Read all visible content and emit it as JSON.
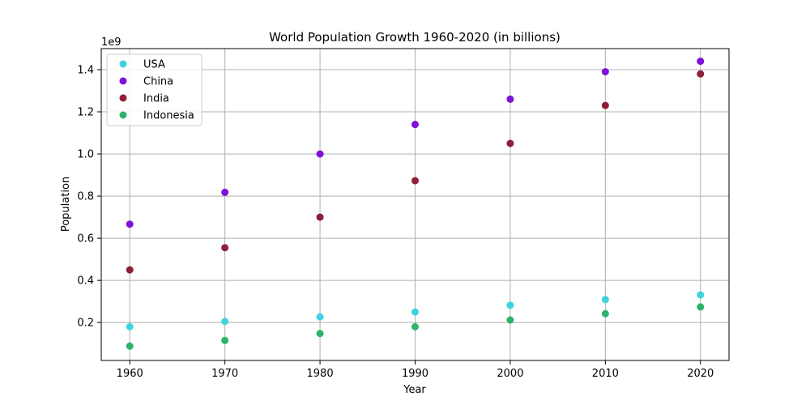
{
  "chart_data": {
    "type": "scatter",
    "title": "World Population Growth 1960-2020 (in billions)",
    "xlabel": "Year",
    "ylabel": "Population",
    "offset_label": "1e9",
    "x": [
      1960,
      1970,
      1980,
      1990,
      2000,
      2010,
      2020
    ],
    "xticks": [
      "1960",
      "1970",
      "1980",
      "1990",
      "2000",
      "2010",
      "2020"
    ],
    "yticks": [
      "0.2",
      "0.4",
      "0.6",
      "0.8",
      "1.0",
      "1.2",
      "1.4"
    ],
    "ytick_values": [
      0.2,
      0.4,
      0.6,
      0.8,
      1.0,
      1.2,
      1.4
    ],
    "xlim": [
      1957,
      2023
    ],
    "ylim": [
      0.02,
      1.5
    ],
    "grid": true,
    "legend_position": "top-left",
    "series": [
      {
        "name": "USA",
        "color": "#3fd3dd",
        "values": [
          0.18,
          0.205,
          0.227,
          0.25,
          0.282,
          0.309,
          0.331
        ]
      },
      {
        "name": "China",
        "color": "#7f11d9",
        "values": [
          0.667,
          0.818,
          1.0,
          1.14,
          1.26,
          1.39,
          1.44
        ]
      },
      {
        "name": "India",
        "color": "#8f1f38",
        "values": [
          0.45,
          0.555,
          0.7,
          0.873,
          1.05,
          1.23,
          1.38
        ]
      },
      {
        "name": "Indonesia",
        "color": "#2eb36a",
        "values": [
          0.088,
          0.115,
          0.148,
          0.18,
          0.212,
          0.242,
          0.274
        ]
      }
    ]
  }
}
